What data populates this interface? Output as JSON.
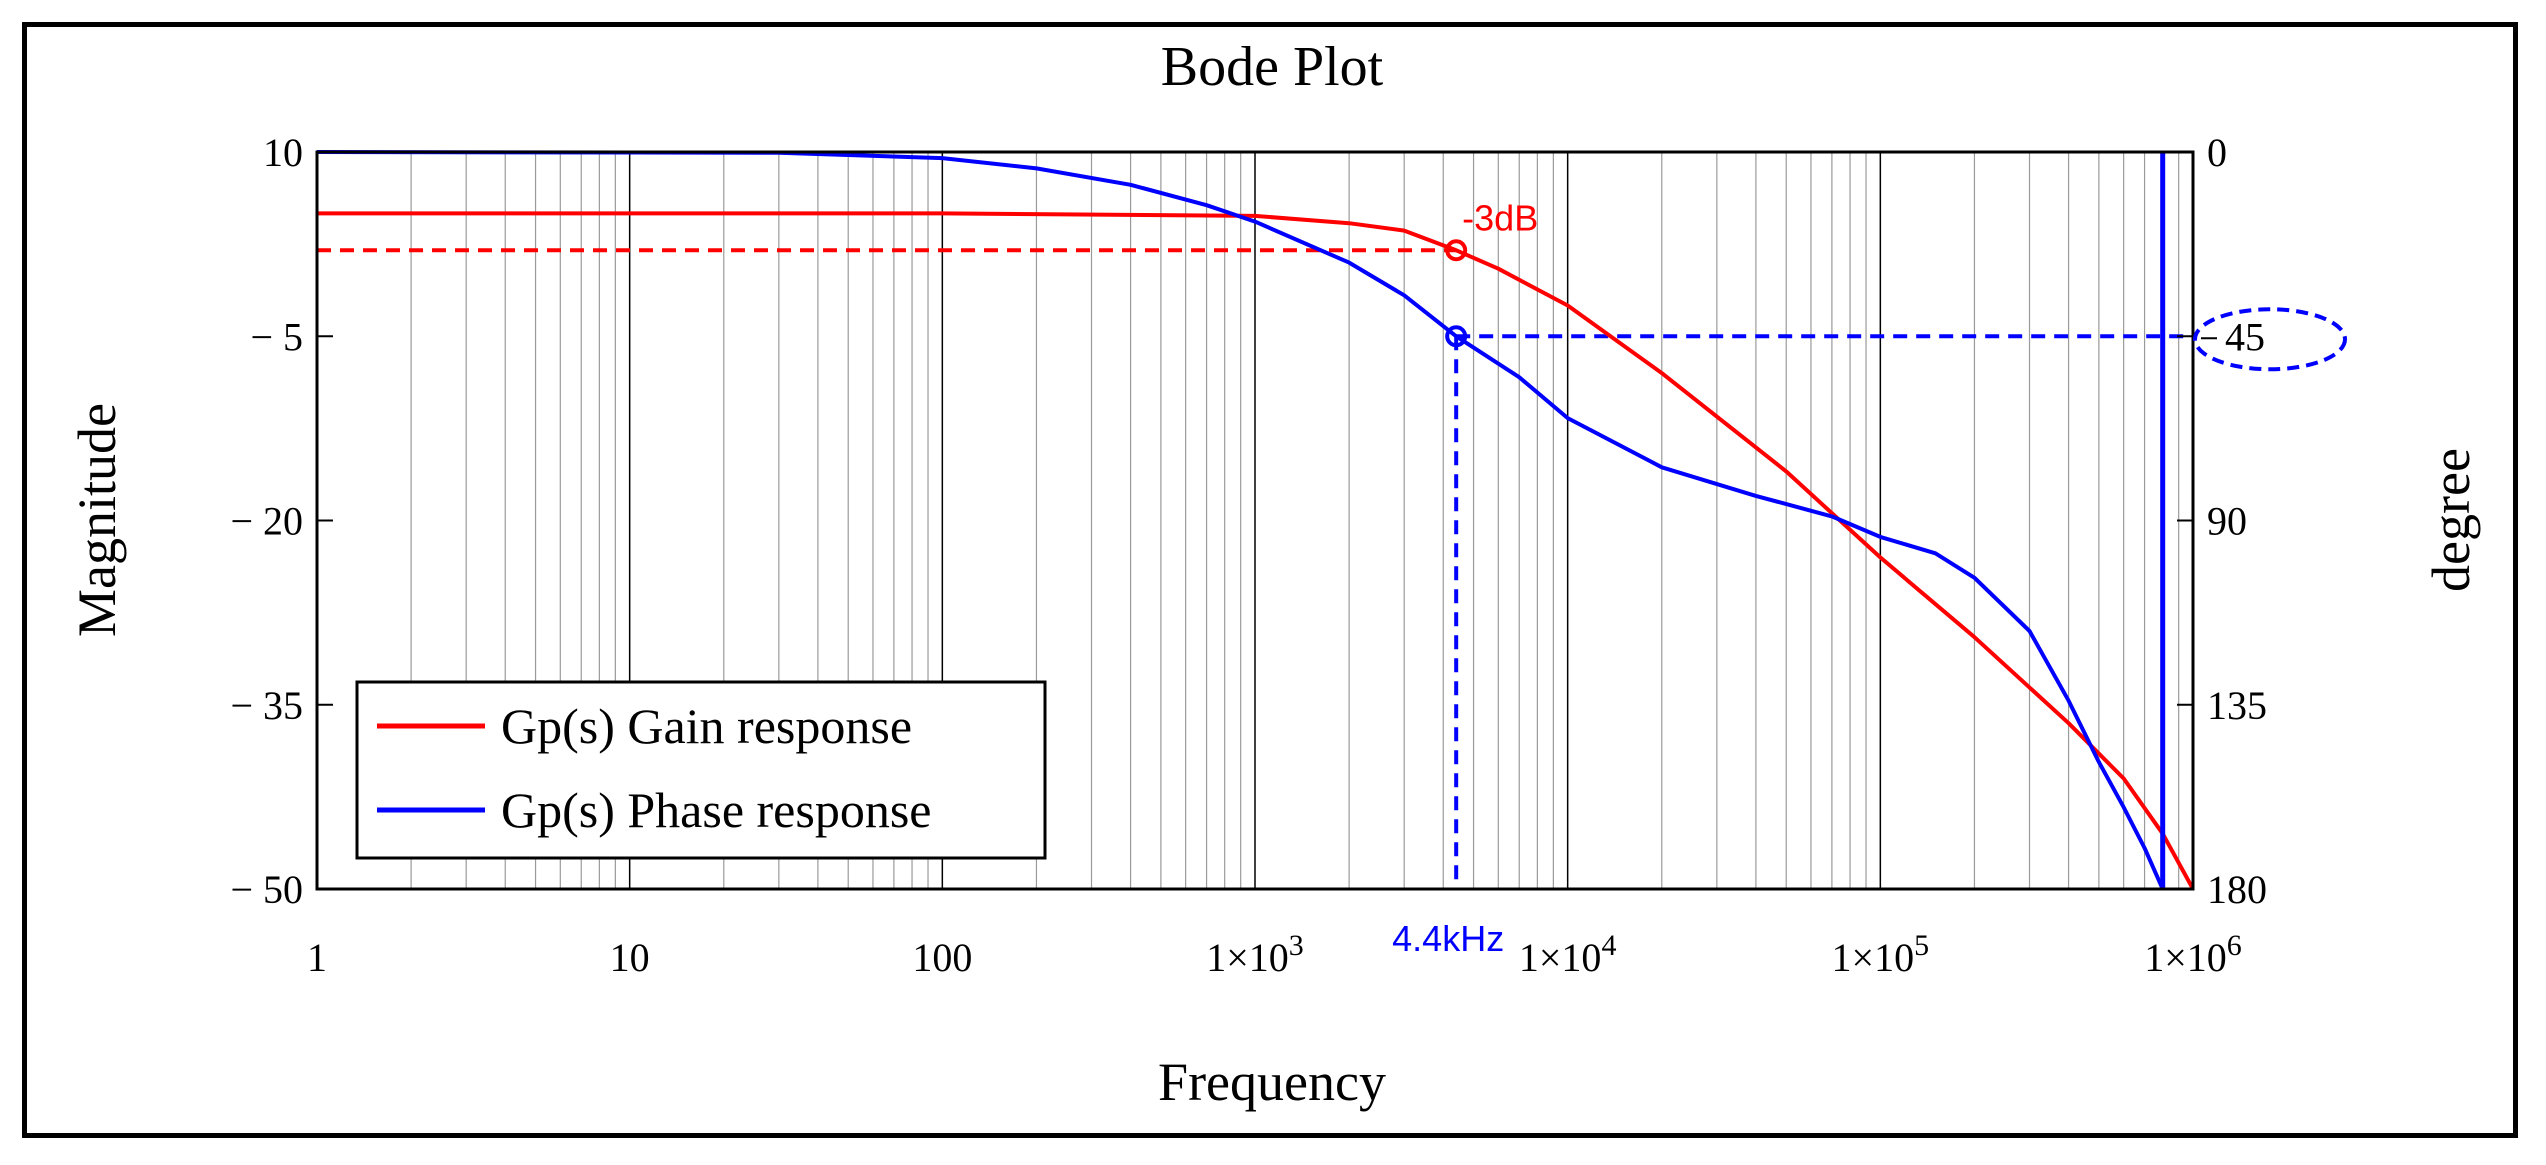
{
  "chart_data": {
    "type": "line",
    "title": "Bode Plot",
    "xlabel": "Frequency",
    "ylabel_left": "Magnitude",
    "ylabel_right": "degree",
    "x_scale": "log",
    "xlim": [
      1,
      1000000
    ],
    "ylim_left": [
      -50,
      10
    ],
    "ylim_right": [
      0,
      180
    ],
    "x_ticks": [
      {
        "value": 1,
        "label": "1"
      },
      {
        "value": 10,
        "label": "10"
      },
      {
        "value": 100,
        "label": "100"
      },
      {
        "value": 1000,
        "label": "1×10",
        "exp": "3"
      },
      {
        "value": 10000,
        "label": "1×10",
        "exp": "4"
      },
      {
        "value": 100000,
        "label": "1×10",
        "exp": "5"
      },
      {
        "value": 1000000,
        "label": "1×10",
        "exp": "6"
      }
    ],
    "y_ticks_left": [
      {
        "value": 10,
        "label": "10"
      },
      {
        "value": -5,
        "label": "− 5"
      },
      {
        "value": -20,
        "label": "− 20"
      },
      {
        "value": -35,
        "label": "− 35"
      },
      {
        "value": -50,
        "label": "− 50"
      }
    ],
    "y_ticks_right": [
      {
        "value": 0,
        "label": "0"
      },
      {
        "value": 45,
        "label": "45"
      },
      {
        "value": 90,
        "label": "90"
      },
      {
        "value": 135,
        "label": "135"
      },
      {
        "value": 180,
        "label": "180"
      }
    ],
    "grid": true,
    "series": [
      {
        "name": "Gp(s) Gain response",
        "color": "#ff0000",
        "axis": "left",
        "x": [
          1,
          100,
          1000,
          2000,
          3000,
          4400,
          6000,
          10000,
          20000,
          50000,
          100000,
          200000,
          400000,
          600000,
          800000,
          1000000
        ],
        "y": [
          5,
          5,
          4.8,
          4.2,
          3.6,
          2,
          0.5,
          -2.5,
          -8,
          -16,
          -23,
          -29.5,
          -36.5,
          -41,
          -45.5,
          -50
        ]
      },
      {
        "name": "Gp(s) Phase response",
        "color": "#0000ff",
        "axis": "right",
        "x": [
          1,
          30,
          100,
          200,
          400,
          700,
          1000,
          2000,
          3000,
          4400,
          7000,
          10000,
          20000,
          40000,
          70000,
          100000,
          150000,
          200000,
          300000,
          400000,
          500000,
          600000,
          700000,
          800000
        ],
        "y": [
          0,
          0.2,
          1.5,
          4,
          8,
          13,
          17,
          27,
          35,
          45,
          55,
          65,
          77,
          84,
          89,
          94,
          98,
          104,
          117,
          134,
          149,
          160,
          170,
          180
        ]
      }
    ],
    "annotations": [
      {
        "label": "-3dB",
        "x": 4400,
        "y": 2,
        "axis": "left",
        "color": "#ff0000"
      },
      {
        "label": "4.4kHz",
        "x": 4400,
        "axis": "bottom",
        "color": "#0000ff"
      },
      {
        "label": "45",
        "y": 45,
        "axis": "right",
        "color": "#0000ff",
        "circled": true
      }
    ],
    "vertical_line": {
      "x": 800000,
      "color": "#0000ff"
    },
    "legend_position": "bottom-left"
  }
}
